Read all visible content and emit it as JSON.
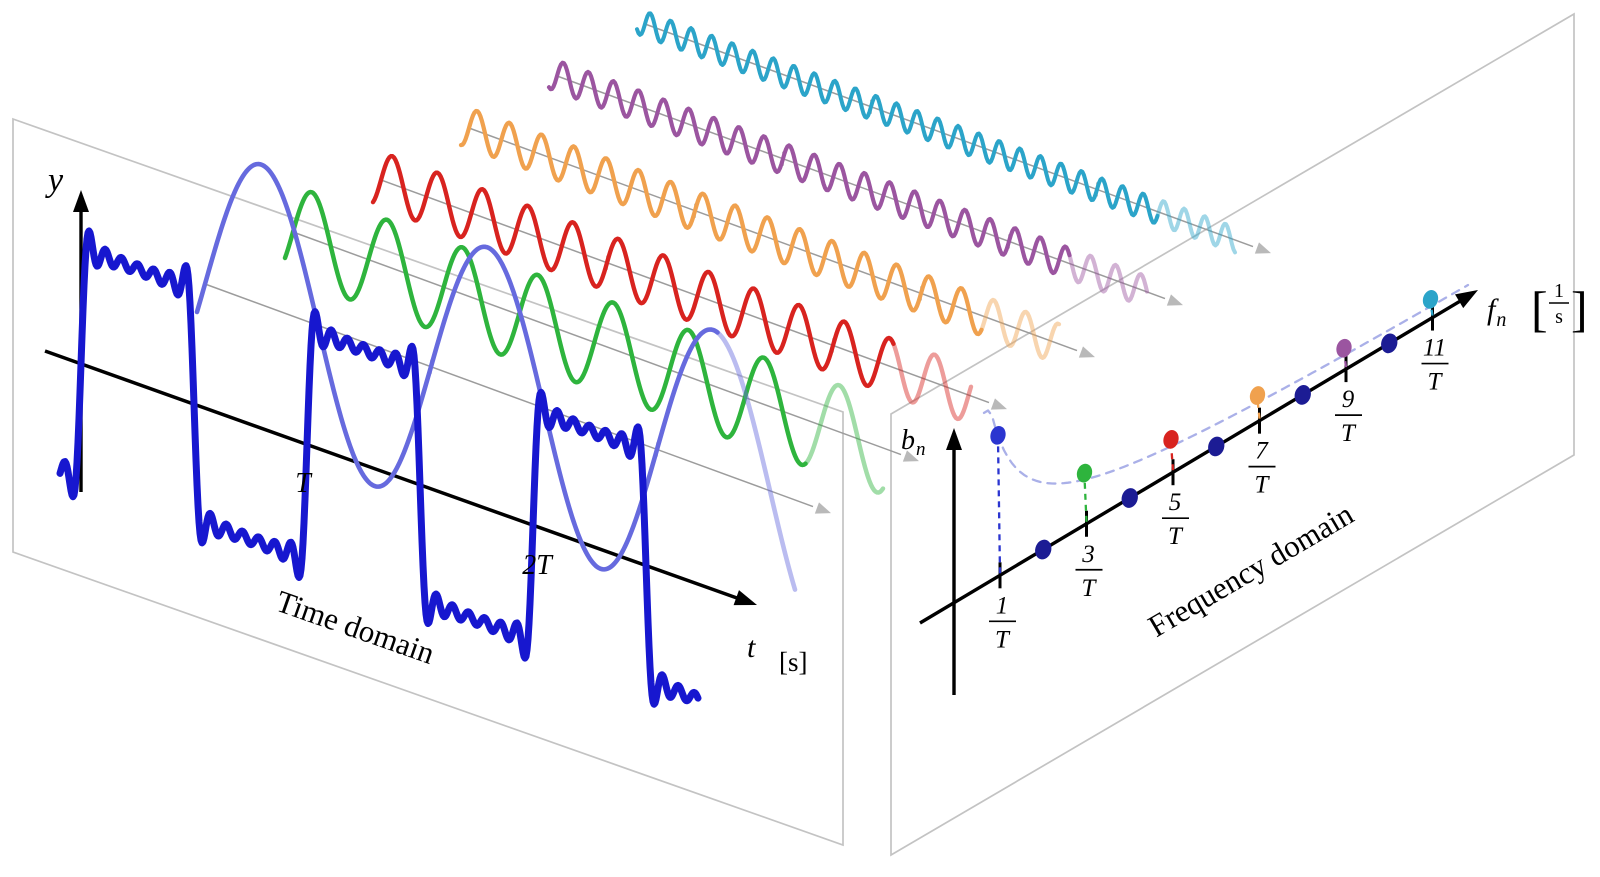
{
  "time_domain": {
    "label": "Time domain",
    "y_axis": "y",
    "t_axis": "t",
    "t_unit": "[s]",
    "ticks": [
      "T",
      "2T"
    ],
    "square_wave": {
      "color": "#1717cf",
      "partial_sum_max_n": 13
    },
    "fundamental_color": "#666ade"
  },
  "frequency_domain": {
    "label": "Frequency domain",
    "b_axis": "b",
    "b_axis_sub": "n",
    "f_axis": "f",
    "f_axis_sub": "n",
    "f_unit_open": "[",
    "f_unit_num": "1",
    "f_unit_den": "s",
    "f_unit_close": "]",
    "ticks": [
      {
        "num": "1",
        "den": "T"
      },
      {
        "num": "3",
        "den": "T"
      },
      {
        "num": "5",
        "den": "T"
      },
      {
        "num": "7",
        "den": "T"
      },
      {
        "num": "9",
        "den": "T"
      },
      {
        "num": "11",
        "den": "T"
      }
    ],
    "even_dot_color": "#1c1c94",
    "envelope_color": "#aab0e8",
    "coefficients": {
      "odd_n": [
        1,
        3,
        5,
        7,
        9,
        11
      ],
      "relative_b_n": [
        1,
        0.333,
        0.2,
        0.143,
        0.111,
        0.091
      ],
      "even_b_n": 0
    }
  },
  "harmonics": [
    {
      "n": 1,
      "color": "#666ade",
      "dot_color": "#2b35d0",
      "relative_amplitude": 1
    },
    {
      "n": 3,
      "color": "#2eb43d",
      "dot_color": "#2eb43d",
      "relative_amplitude": 0.333
    },
    {
      "n": 5,
      "color": "#d8231f",
      "dot_color": "#d8231f",
      "relative_amplitude": 0.2
    },
    {
      "n": 7,
      "color": "#f0a14e",
      "dot_color": "#f0a14e",
      "relative_amplitude": 0.143
    },
    {
      "n": 9,
      "color": "#9b55a0",
      "dot_color": "#9b55a0",
      "relative_amplitude": 0.111
    },
    {
      "n": 11,
      "color": "#2ba4c9",
      "dot_color": "#2ba4c9",
      "relative_amplitude": 0.091
    }
  ]
}
